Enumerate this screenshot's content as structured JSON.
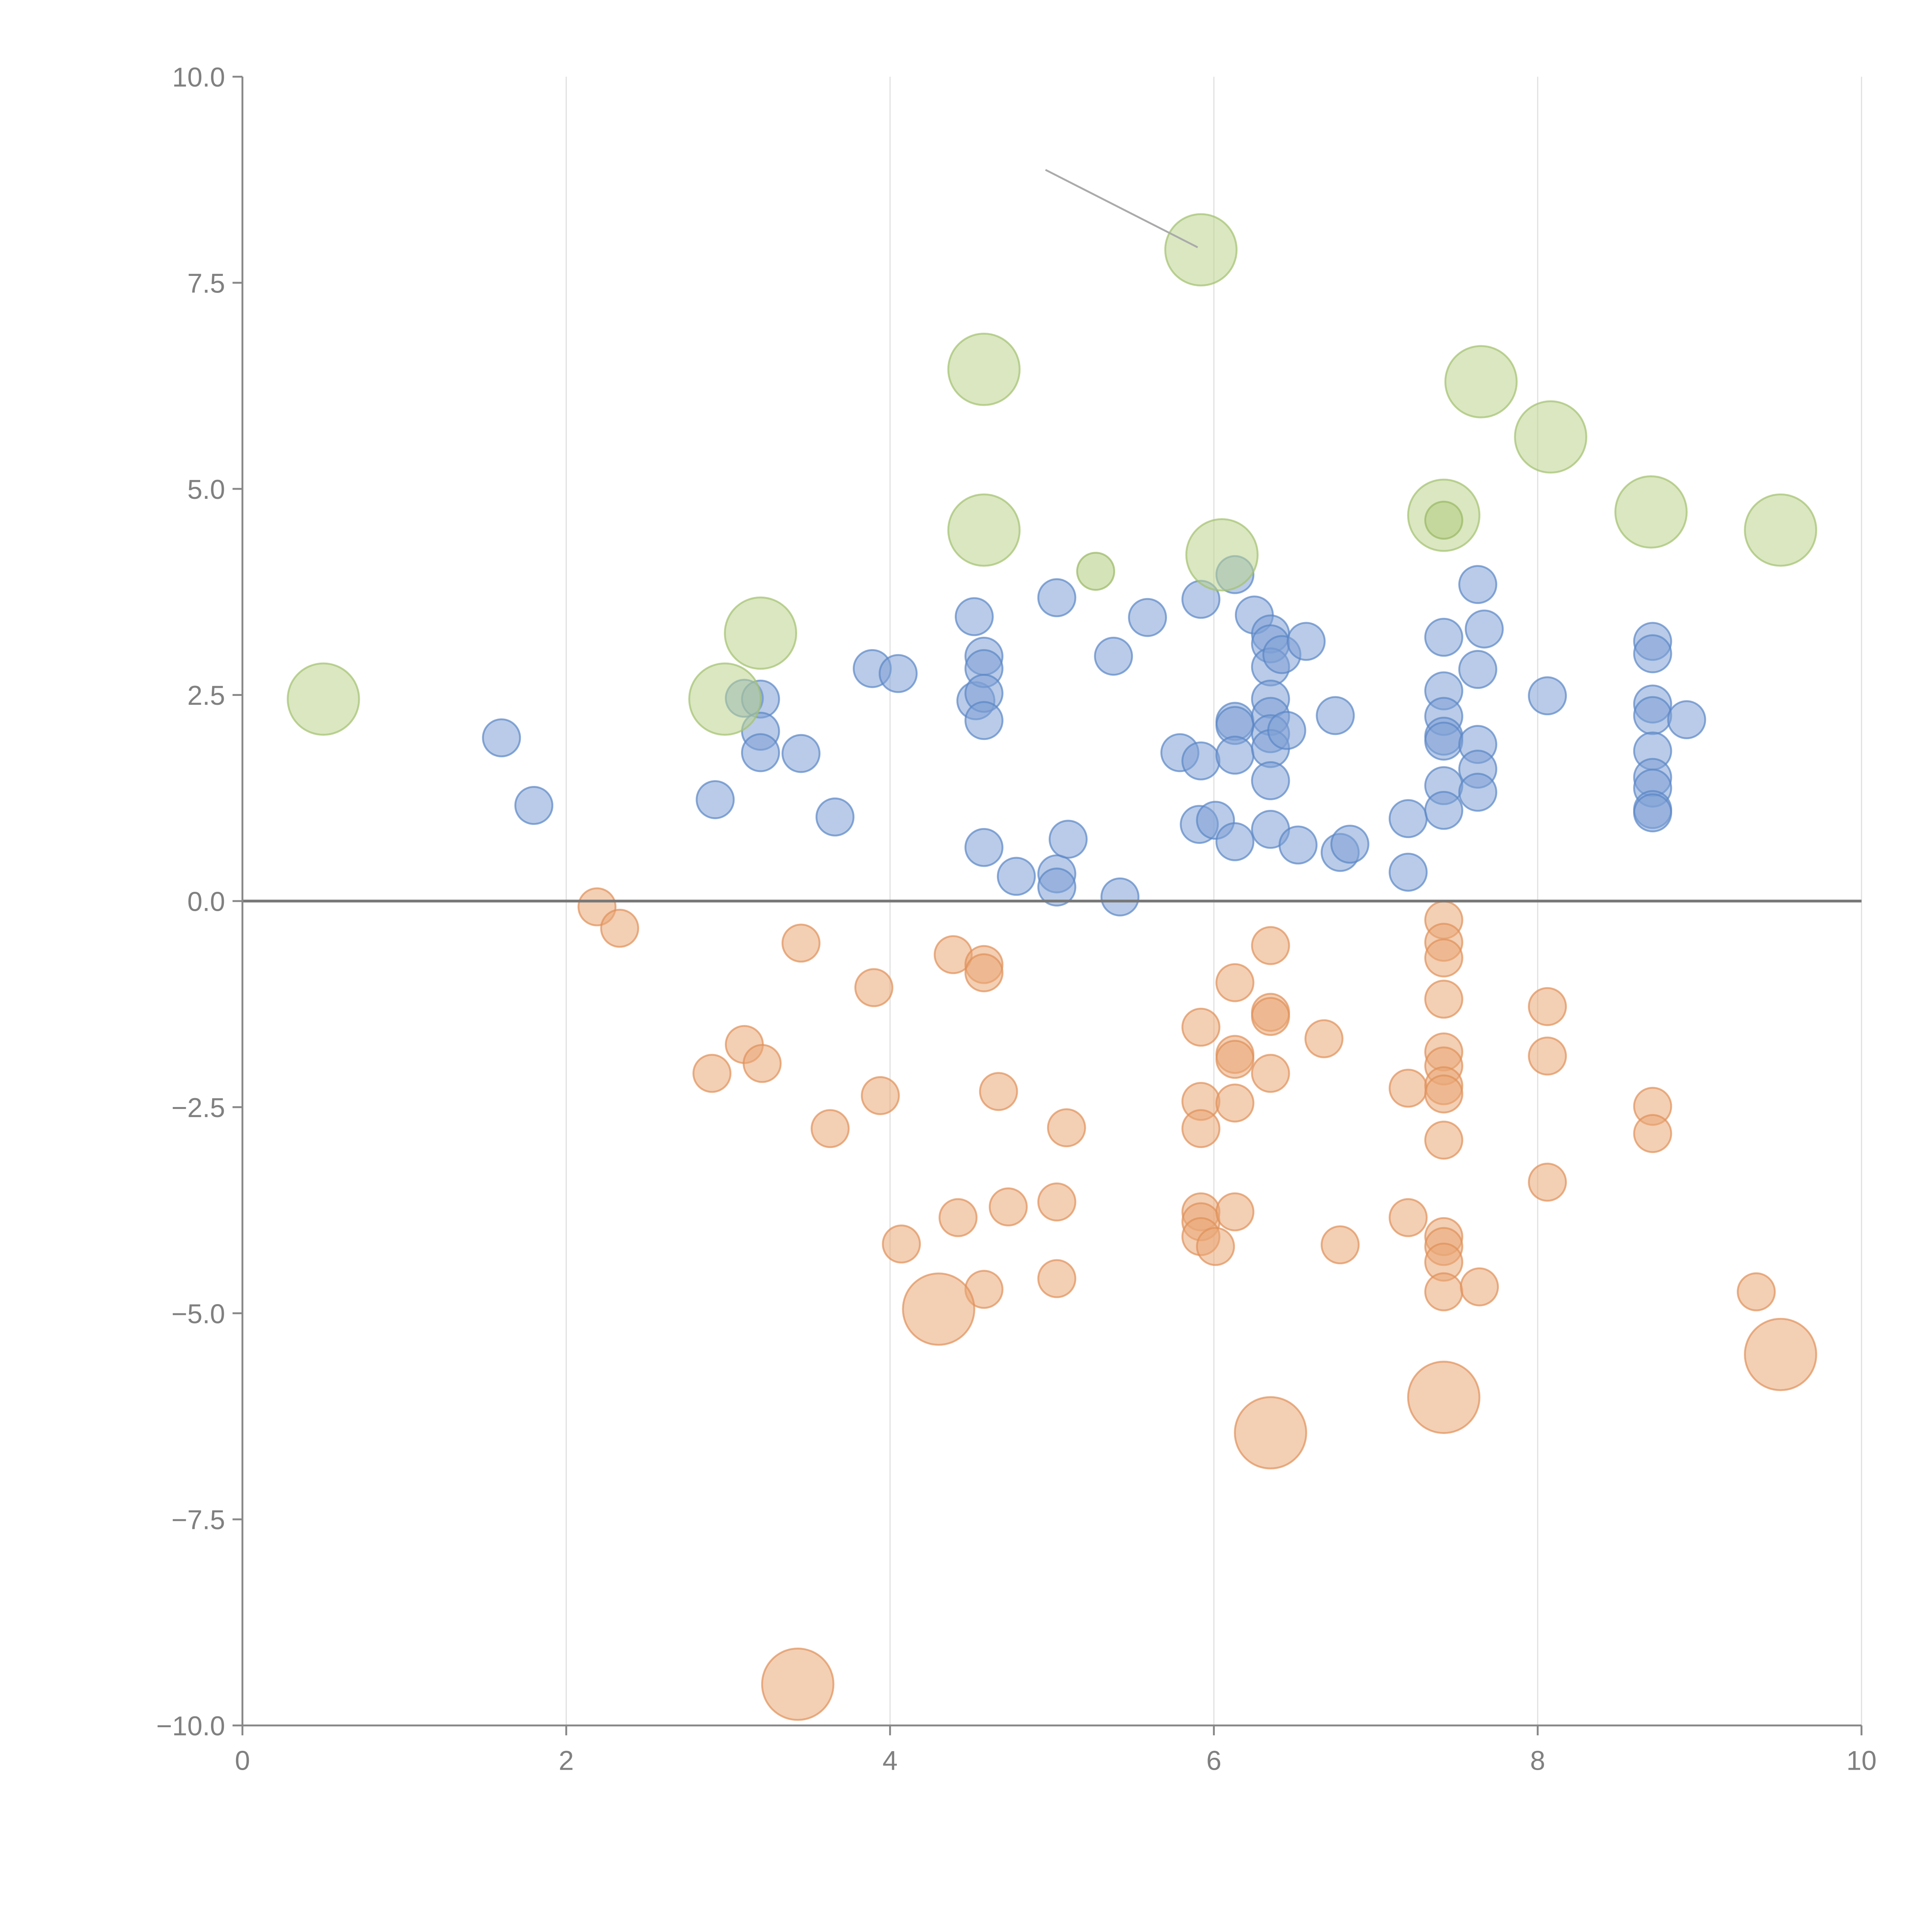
{
  "chart_data": {
    "type": "scatter",
    "title": "",
    "xlabel": "",
    "ylabel": "",
    "xlim": [
      0,
      10
    ],
    "ylim": [
      -10,
      10
    ],
    "grid": "vertical lines at x ticks",
    "x_ticks": [
      "0",
      "2",
      "4",
      "6",
      "8",
      "10"
    ],
    "x_tick_values": [
      0,
      2,
      4,
      6,
      8,
      10
    ],
    "y_ticks": [
      "10.0",
      "7.5",
      "5.0",
      "2.5",
      "0.0",
      "−2.5",
      "−5.0",
      "−7.5",
      "−10.0"
    ],
    "y_tick_values": [
      10,
      7.5,
      5,
      2.5,
      0,
      -2.5,
      -5,
      -7.5,
      -10
    ],
    "reference_line_y": 0,
    "annotation_line": [
      [
        4.96,
        8.87
      ],
      [
        5.9,
        7.93
      ]
    ],
    "size_note": "relative bubble area: small=1, large=3.7",
    "series": [
      {
        "name": "blue",
        "color": "#7fa1d5",
        "stroke": "#5a86c6",
        "size": 1,
        "points": [
          [
            1.6,
            1.98
          ],
          [
            1.8,
            1.16
          ],
          [
            2.92,
            1.23
          ],
          [
            3.1,
            2.46
          ],
          [
            3.2,
            2.45
          ],
          [
            3.2,
            2.06
          ],
          [
            3.2,
            1.8
          ],
          [
            3.45,
            1.79
          ],
          [
            3.66,
            1.02
          ],
          [
            3.89,
            2.82
          ],
          [
            4.05,
            2.76
          ],
          [
            4.52,
            3.45
          ],
          [
            4.53,
            2.43
          ],
          [
            4.58,
            2.97
          ],
          [
            4.58,
            2.82
          ],
          [
            4.58,
            2.52
          ],
          [
            4.58,
            2.19
          ],
          [
            4.58,
            0.65
          ],
          [
            4.78,
            0.3
          ],
          [
            5.03,
            3.68
          ],
          [
            5.03,
            0.33
          ],
          [
            5.03,
            0.17
          ],
          [
            5.1,
            0.75
          ],
          [
            5.38,
            2.97
          ],
          [
            5.42,
            0.05
          ],
          [
            5.59,
            3.44
          ],
          [
            5.79,
            1.8
          ],
          [
            5.92,
            3.66
          ],
          [
            5.92,
            1.7
          ],
          [
            5.91,
            0.93
          ],
          [
            6.01,
            0.98
          ],
          [
            6.13,
            3.96
          ],
          [
            6.13,
            2.18
          ],
          [
            6.13,
            2.13
          ],
          [
            6.13,
            1.77
          ],
          [
            6.13,
            0.72
          ],
          [
            6.25,
            3.47
          ],
          [
            6.35,
            3.24
          ],
          [
            6.35,
            3.12
          ],
          [
            6.35,
            2.84
          ],
          [
            6.42,
            2.99
          ],
          [
            6.35,
            2.45
          ],
          [
            6.35,
            2.24
          ],
          [
            6.35,
            2.03
          ],
          [
            6.35,
            1.85
          ],
          [
            6.45,
            2.07
          ],
          [
            6.35,
            1.46
          ],
          [
            6.35,
            0.87
          ],
          [
            6.52,
            0.68
          ],
          [
            6.57,
            3.15
          ],
          [
            6.75,
            2.25
          ],
          [
            6.78,
            0.59
          ],
          [
            6.84,
            0.69
          ],
          [
            7.2,
            1.0
          ],
          [
            7.2,
            0.35
          ],
          [
            7.42,
            3.2
          ],
          [
            7.42,
            2.55
          ],
          [
            7.42,
            2.24
          ],
          [
            7.42,
            2.0
          ],
          [
            7.42,
            1.94
          ],
          [
            7.42,
            1.4
          ],
          [
            7.42,
            1.1
          ],
          [
            7.63,
            3.84
          ],
          [
            7.67,
            3.3
          ],
          [
            7.63,
            2.81
          ],
          [
            7.63,
            1.9
          ],
          [
            7.63,
            1.6
          ],
          [
            7.63,
            1.32
          ],
          [
            8.06,
            2.49
          ],
          [
            8.71,
            3.15
          ],
          [
            8.71,
            3.0
          ],
          [
            8.71,
            2.39
          ],
          [
            8.71,
            2.25
          ],
          [
            8.71,
            1.82
          ],
          [
            8.71,
            1.5
          ],
          [
            8.71,
            1.37
          ],
          [
            8.71,
            1.11
          ],
          [
            8.71,
            1.07
          ],
          [
            8.92,
            2.2
          ]
        ]
      },
      {
        "name": "orange",
        "color": "#eaa877",
        "stroke": "#df9058",
        "size": 1,
        "points": [
          [
            2.19,
            -0.07
          ],
          [
            2.33,
            -0.33
          ],
          [
            3.45,
            -0.51
          ],
          [
            3.9,
            -1.05
          ],
          [
            4.39,
            -0.65
          ],
          [
            4.58,
            -0.77
          ],
          [
            4.58,
            -0.87
          ],
          [
            3.1,
            -1.74
          ],
          [
            3.21,
            -1.97
          ],
          [
            2.9,
            -2.09
          ],
          [
            3.94,
            -2.36
          ],
          [
            3.63,
            -2.76
          ],
          [
            4.67,
            -2.31
          ],
          [
            5.09,
            -2.75
          ],
          [
            4.07,
            -4.16
          ],
          [
            4.42,
            -3.84
          ],
          [
            4.73,
            -3.71
          ],
          [
            5.03,
            -3.65
          ],
          [
            4.58,
            -4.71
          ],
          [
            5.03,
            -4.58
          ],
          [
            5.92,
            -1.53
          ],
          [
            5.92,
            -2.43
          ],
          [
            5.92,
            -2.76
          ],
          [
            5.92,
            -3.77
          ],
          [
            5.92,
            -3.89
          ],
          [
            5.92,
            -4.07
          ],
          [
            6.01,
            -4.19
          ],
          [
            6.13,
            -0.99
          ],
          [
            6.13,
            -1.86
          ],
          [
            6.13,
            -1.92
          ],
          [
            6.13,
            -2.45
          ],
          [
            6.13,
            -3.77
          ],
          [
            6.35,
            -0.54
          ],
          [
            6.35,
            -1.35
          ],
          [
            6.35,
            -1.4
          ],
          [
            6.35,
            -2.09
          ],
          [
            6.68,
            -1.67
          ],
          [
            6.78,
            -4.17
          ],
          [
            7.2,
            -2.27
          ],
          [
            7.2,
            -3.84
          ],
          [
            7.42,
            -0.23
          ],
          [
            7.42,
            -0.5
          ],
          [
            7.42,
            -0.69
          ],
          [
            7.42,
            -1.19
          ],
          [
            7.42,
            -1.83
          ],
          [
            7.42,
            -2.0
          ],
          [
            7.42,
            -2.24
          ],
          [
            7.42,
            -2.34
          ],
          [
            7.42,
            -2.9
          ],
          [
            7.42,
            -4.07
          ],
          [
            7.42,
            -4.19
          ],
          [
            7.42,
            -4.38
          ],
          [
            7.42,
            -4.74
          ],
          [
            7.64,
            -4.68
          ],
          [
            8.06,
            -1.28
          ],
          [
            8.06,
            -1.88
          ],
          [
            8.06,
            -3.41
          ],
          [
            8.71,
            -2.49
          ],
          [
            8.71,
            -2.82
          ],
          [
            9.35,
            -4.74
          ]
        ]
      },
      {
        "name": "orange-large",
        "color": "#eaa877",
        "stroke": "#df9058",
        "size": 3.7,
        "points": [
          [
            4.3,
            -4.95
          ],
          [
            6.35,
            -6.45
          ],
          [
            7.42,
            -6.02
          ],
          [
            9.5,
            -5.5
          ],
          [
            3.43,
            -9.5
          ]
        ]
      },
      {
        "name": "green-large",
        "color": "#bcd48e",
        "stroke": "#a3c06d",
        "size": 3.7,
        "points": [
          [
            0.5,
            2.45
          ],
          [
            2.98,
            2.45
          ],
          [
            3.2,
            3.25
          ],
          [
            4.58,
            6.45
          ],
          [
            4.58,
            4.5
          ],
          [
            5.92,
            7.9
          ],
          [
            6.05,
            4.2
          ],
          [
            7.42,
            4.68
          ],
          [
            7.65,
            6.3
          ],
          [
            8.08,
            5.63
          ],
          [
            8.7,
            4.72
          ],
          [
            9.5,
            4.5
          ]
        ]
      },
      {
        "name": "green-small",
        "color": "#b2cc80",
        "stroke": "#98b862",
        "size": 1,
        "points": [
          [
            5.27,
            4.0
          ],
          [
            7.42,
            4.62
          ]
        ]
      }
    ]
  }
}
